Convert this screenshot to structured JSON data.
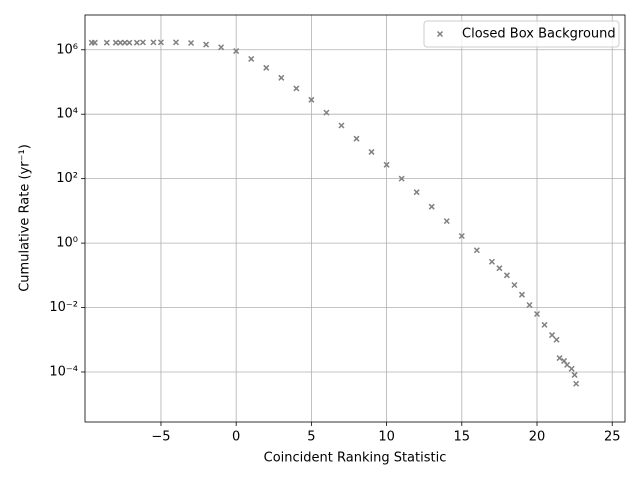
{
  "chart_data": {
    "type": "scatter",
    "xlabel": "Coincident Ranking Statistic",
    "ylabel": "Cumulative Rate (yr⁻¹)",
    "yscale": "log",
    "grid": true,
    "legend": "upper right",
    "xlim": [
      -10.05,
      25.85
    ],
    "ylim": [
      2.8e-06,
      12000000.0
    ],
    "xticks": [
      {
        "value": -5,
        "label": "−5"
      },
      0,
      5,
      10,
      15,
      20,
      25
    ],
    "yticks": [
      {
        "value": 0.0001,
        "label": "10⁻⁴"
      },
      {
        "value": 0.01,
        "label": "10⁻²"
      },
      {
        "value": 1,
        "label": "10⁰"
      },
      {
        "value": 100,
        "label": "10²"
      },
      {
        "value": 10000,
        "label": "10⁴"
      },
      {
        "value": 1000000,
        "label": "10⁶"
      }
    ],
    "series": [
      {
        "name": "Closed Box Background",
        "color": "#808080",
        "x": [
          -9.6,
          -9.4,
          -8.6,
          -8.0,
          -7.7,
          -7.4,
          -7.1,
          -6.6,
          -6.2,
          -5.5,
          -5,
          -4,
          -3,
          -2,
          -1,
          0,
          1,
          2,
          3,
          4,
          5,
          6,
          7,
          8,
          9,
          10,
          11,
          12,
          13,
          14,
          15,
          16,
          17,
          17.5,
          18,
          18.5,
          19,
          19.5,
          20,
          20.5,
          21,
          21.3,
          21.5,
          21.8,
          22.0,
          22.3,
          22.5,
          22.6
        ],
        "values": [
          1660000.0,
          1660000.0,
          1660000.0,
          1660000.0,
          1660000.0,
          1660000.0,
          1660000.0,
          1660000.0,
          1700000.0,
          1700000.0,
          1700000.0,
          1700000.0,
          1620000.0,
          1450000.0,
          1200000.0,
          910000.0,
          520000.0,
          275000.0,
          135000.0,
          63000.0,
          28000.0,
          11200.0,
          4470,
          1740,
          676,
          269,
          100,
          38,
          13.5,
          4.8,
          1.66,
          0.6,
          0.263,
          0.166,
          0.1,
          0.05,
          0.025,
          0.012,
          0.0063,
          0.0029,
          0.0014,
          0.001,
          0.00027,
          0.00022,
          0.000166,
          0.000126,
          8.1e-05,
          4.3e-05
        ]
      }
    ]
  }
}
